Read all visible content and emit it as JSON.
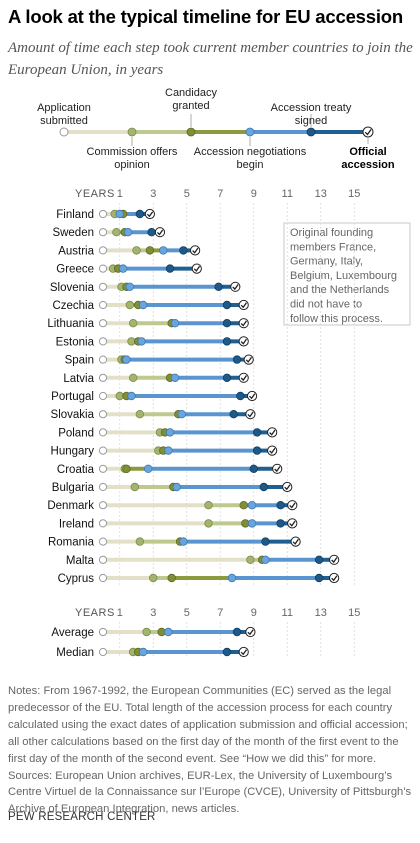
{
  "title": "A look at the typical timeline for EU accession",
  "subtitle": "Amount of time each step took current member countries to join the European Union, in years",
  "colors": {
    "application": "#e4e0c8",
    "candidacy": "#bdc98e",
    "negotiations": "#8c9a3f",
    "commission": "#a3b470",
    "accession_segment": "#5b95d0",
    "final_segment": "#1f5f91",
    "grid": "#d9d9d9"
  },
  "legend": {
    "application": "Application submitted",
    "commission": "Commission offers opinion",
    "candidacy": "Candidacy granted",
    "negotiations": "Accession negotiations begin",
    "treaty": "Accession treaty signed",
    "official": "Official accession"
  },
  "annotation": "Original founding members France, Germany, Italy, Belgium, Luxembourg and the Netherlands did not have to follow this process.",
  "notes": "Notes: From 1967-1992, the European Communities (EC) served as the legal predecessor of the EU. Total length of the accession process for each country calculated using the exact dates of application submission and official accession; all other calculations based on the first day of the month of the first event to the first day of the month of the second event. See “How we did this” for more.\nSources: European Union archives, EUR-Lex, the University of Luxembourg’s Centre Virtuel de la Connaissance sur l’Europe (CVCE), University of Pittsburgh’s Archive of European Integration, news articles.",
  "source_line": "PEW RESEARCH CENTER",
  "chart_data": {
    "type": "dot-timeline",
    "axis_label": "YEARS",
    "x_ticks": [
      1,
      3,
      5,
      7,
      9,
      11,
      13,
      15
    ],
    "xlim": [
      0,
      15
    ],
    "event_order": [
      "commission_opinion",
      "candidacy_granted",
      "negotiations_begin",
      "treaty_signed",
      "official_accession"
    ],
    "countries": [
      {
        "name": "Finland",
        "opinion": 0.7,
        "candidacy": 1.2,
        "negotiations": 1.0,
        "treaty": 2.2,
        "official": 2.8
      },
      {
        "name": "Sweden",
        "opinion": 0.8,
        "candidacy": 1.3,
        "negotiations": 1.5,
        "treaty": 2.9,
        "official": 3.4
      },
      {
        "name": "Austria",
        "opinion": 2.0,
        "candidacy": 2.8,
        "negotiations": 3.6,
        "treaty": 4.8,
        "official": 5.5
      },
      {
        "name": "Greece",
        "opinion": 0.6,
        "candidacy": 0.9,
        "negotiations": 1.2,
        "treaty": 4.0,
        "official": 5.6
      },
      {
        "name": "Slovenia",
        "opinion": 1.1,
        "candidacy": 1.4,
        "negotiations": 1.6,
        "treaty": 6.9,
        "official": 7.9
      },
      {
        "name": "Czechia",
        "opinion": 1.6,
        "candidacy": 2.1,
        "negotiations": 2.4,
        "treaty": 7.4,
        "official": 8.4
      },
      {
        "name": "Lithuania",
        "opinion": 1.8,
        "candidacy": 4.1,
        "negotiations": 4.3,
        "treaty": 7.4,
        "official": 8.4
      },
      {
        "name": "Estonia",
        "opinion": 1.7,
        "candidacy": 2.1,
        "negotiations": 2.3,
        "treaty": 7.4,
        "official": 8.4
      },
      {
        "name": "Spain",
        "opinion": 1.1,
        "candidacy": 1.3,
        "negotiations": 1.4,
        "treaty": 8.0,
        "official": 8.7
      },
      {
        "name": "Latvia",
        "opinion": 1.8,
        "candidacy": 4.0,
        "negotiations": 4.3,
        "treaty": 7.4,
        "official": 8.4
      },
      {
        "name": "Portugal",
        "opinion": 1.0,
        "candidacy": 1.4,
        "negotiations": 1.7,
        "treaty": 8.2,
        "official": 8.9
      },
      {
        "name": "Slovakia",
        "opinion": 2.2,
        "candidacy": 4.5,
        "negotiations": 4.7,
        "treaty": 7.8,
        "official": 8.8
      },
      {
        "name": "Poland",
        "opinion": 3.4,
        "candidacy": 3.7,
        "negotiations": 4.0,
        "treaty": 9.2,
        "official": 10.1
      },
      {
        "name": "Hungary",
        "opinion": 3.3,
        "candidacy": 3.6,
        "negotiations": 3.9,
        "treaty": 9.2,
        "official": 10.1
      },
      {
        "name": "Croatia",
        "opinion": 1.3,
        "candidacy": 1.4,
        "negotiations": 2.7,
        "treaty": 9.0,
        "official": 10.4
      },
      {
        "name": "Bulgaria",
        "opinion": 1.9,
        "candidacy": 4.2,
        "negotiations": 4.4,
        "treaty": 9.6,
        "official": 11.0
      },
      {
        "name": "Denmark",
        "opinion": 6.3,
        "candidacy": 8.4,
        "negotiations": 8.9,
        "treaty": 10.6,
        "official": 11.3
      },
      {
        "name": "Ireland",
        "opinion": 6.3,
        "candidacy": 8.5,
        "negotiations": 8.9,
        "treaty": 10.6,
        "official": 11.3
      },
      {
        "name": "Romania",
        "opinion": 2.2,
        "candidacy": 4.6,
        "negotiations": 4.8,
        "treaty": 9.7,
        "official": 11.5
      },
      {
        "name": "Malta",
        "opinion": 8.8,
        "candidacy": 9.5,
        "negotiations": 9.7,
        "treaty": 12.9,
        "official": 13.8
      },
      {
        "name": "Cyprus",
        "opinion": 3.0,
        "candidacy": 4.1,
        "negotiations": 7.7,
        "treaty": 12.9,
        "official": 13.8
      }
    ],
    "summary": [
      {
        "name": "Average",
        "opinion": 2.6,
        "candidacy": 3.5,
        "negotiations": 3.9,
        "treaty": 8.0,
        "official": 8.8
      },
      {
        "name": "Median",
        "opinion": 1.8,
        "candidacy": 2.1,
        "negotiations": 2.4,
        "treaty": 7.4,
        "official": 8.4
      }
    ]
  }
}
